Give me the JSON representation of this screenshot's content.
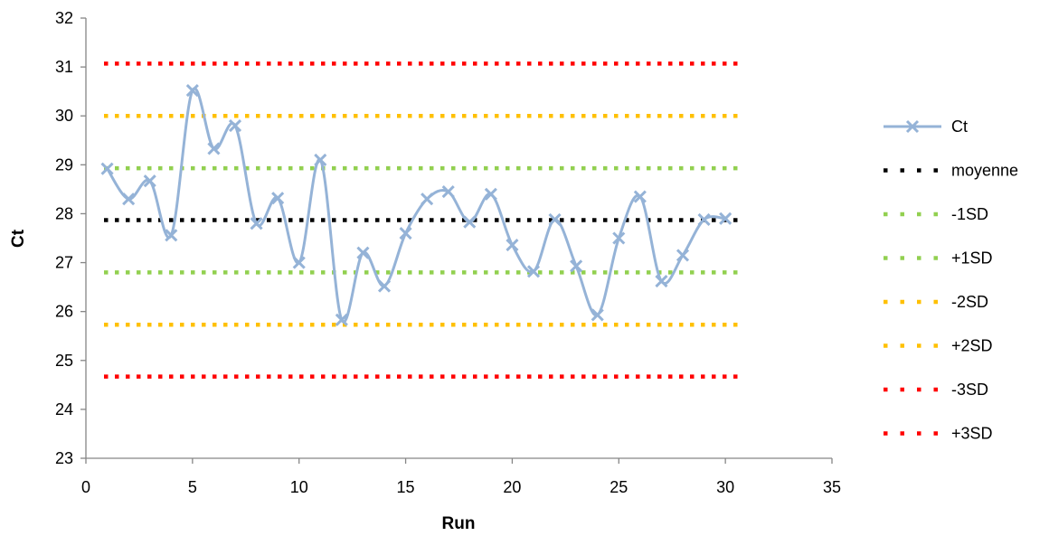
{
  "chart_data": {
    "type": "line",
    "xlabel": "Run",
    "ylabel": "Ct",
    "xlim": [
      0,
      35
    ],
    "ylim": [
      23,
      32
    ],
    "x_ticks": [
      0,
      5,
      10,
      15,
      20,
      25,
      30,
      35
    ],
    "y_ticks": [
      23,
      24,
      25,
      26,
      27,
      28,
      29,
      30,
      31,
      32
    ],
    "grid": false,
    "legend_position": "right",
    "series": [
      {
        "name": "Ct",
        "style": "smooth-line-with-x-markers",
        "color": "#95b3d7",
        "x": [
          1,
          2,
          3,
          4,
          5,
          6,
          7,
          8,
          9,
          10,
          11,
          12,
          13,
          14,
          15,
          16,
          17,
          18,
          19,
          20,
          21,
          22,
          23,
          24,
          25,
          26,
          27,
          28,
          29,
          30
        ],
        "y": [
          28.92,
          28.3,
          28.67,
          27.56,
          30.52,
          29.33,
          29.8,
          27.8,
          28.32,
          27.0,
          29.1,
          25.83,
          27.2,
          26.52,
          27.6,
          28.3,
          28.45,
          27.83,
          28.4,
          27.36,
          26.82,
          27.88,
          26.93,
          25.93,
          27.5,
          28.35,
          26.62,
          27.15,
          27.88,
          27.9
        ]
      },
      {
        "name": "moyenne",
        "style": "dotted",
        "color": "#000000",
        "value": 27.87
      },
      {
        "name": "-1SD",
        "style": "dotted",
        "color": "#92d050",
        "value": 26.8
      },
      {
        "name": "+1SD",
        "style": "dotted",
        "color": "#92d050",
        "value": 28.93
      },
      {
        "name": "-2SD",
        "style": "dotted",
        "color": "#ffc000",
        "value": 25.73
      },
      {
        "name": "+2SD",
        "style": "dotted",
        "color": "#ffc000",
        "value": 30.0
      },
      {
        "name": "-3SD",
        "style": "dotted",
        "color": "#ff0000",
        "value": 24.67
      },
      {
        "name": "+3SD",
        "style": "dotted",
        "color": "#ff0000",
        "value": 31.07
      }
    ],
    "reference_lines_x_range": [
      0,
      31
    ]
  }
}
